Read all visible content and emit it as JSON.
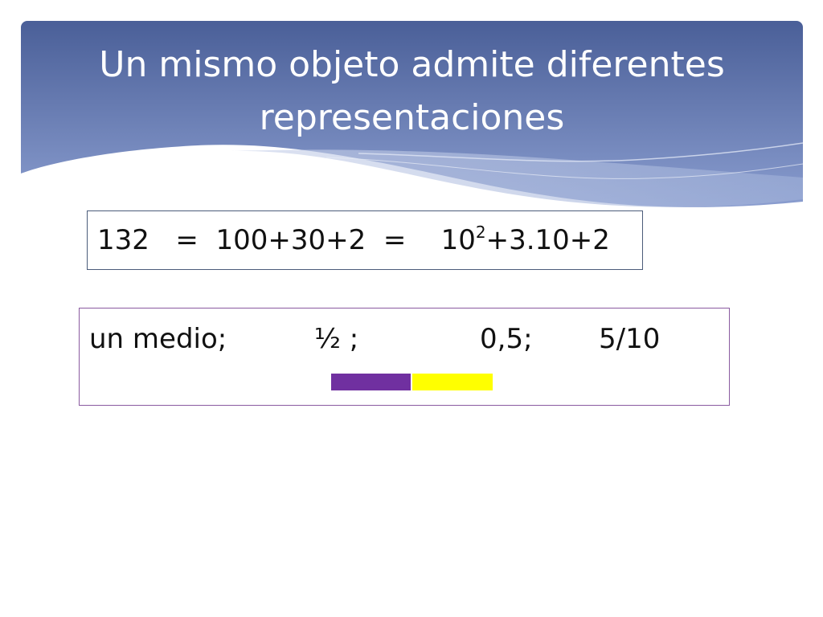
{
  "colors": {
    "banner_top": "#4a5f98",
    "banner_bottom": "#8a9dcf",
    "bar_purple": "#7030a0",
    "bar_yellow": "#ffff00",
    "box1_border": "#4b5c7a",
    "box2_border": "#8a5aa0"
  },
  "slide": {
    "title_line1": "Un mismo objeto admite diferentes",
    "title_line2": "representaciones"
  },
  "numbers_box": {
    "term1": "132",
    "eq1": "=",
    "term2": "100+30+2",
    "eq2": "=",
    "term3_base": "10",
    "term3_exp": "2",
    "term3_rest": "+3.10+2"
  },
  "fractions_box": {
    "words": "un medio;",
    "symbol": "½ ;",
    "decimal": "0,5;",
    "fraction": "5/10",
    "bar_segments": [
      {
        "label": "filled-half",
        "fraction": 0.5,
        "color": "#7030a0"
      },
      {
        "label": "other-half",
        "fraction": 0.5,
        "color": "#ffff00"
      }
    ]
  }
}
